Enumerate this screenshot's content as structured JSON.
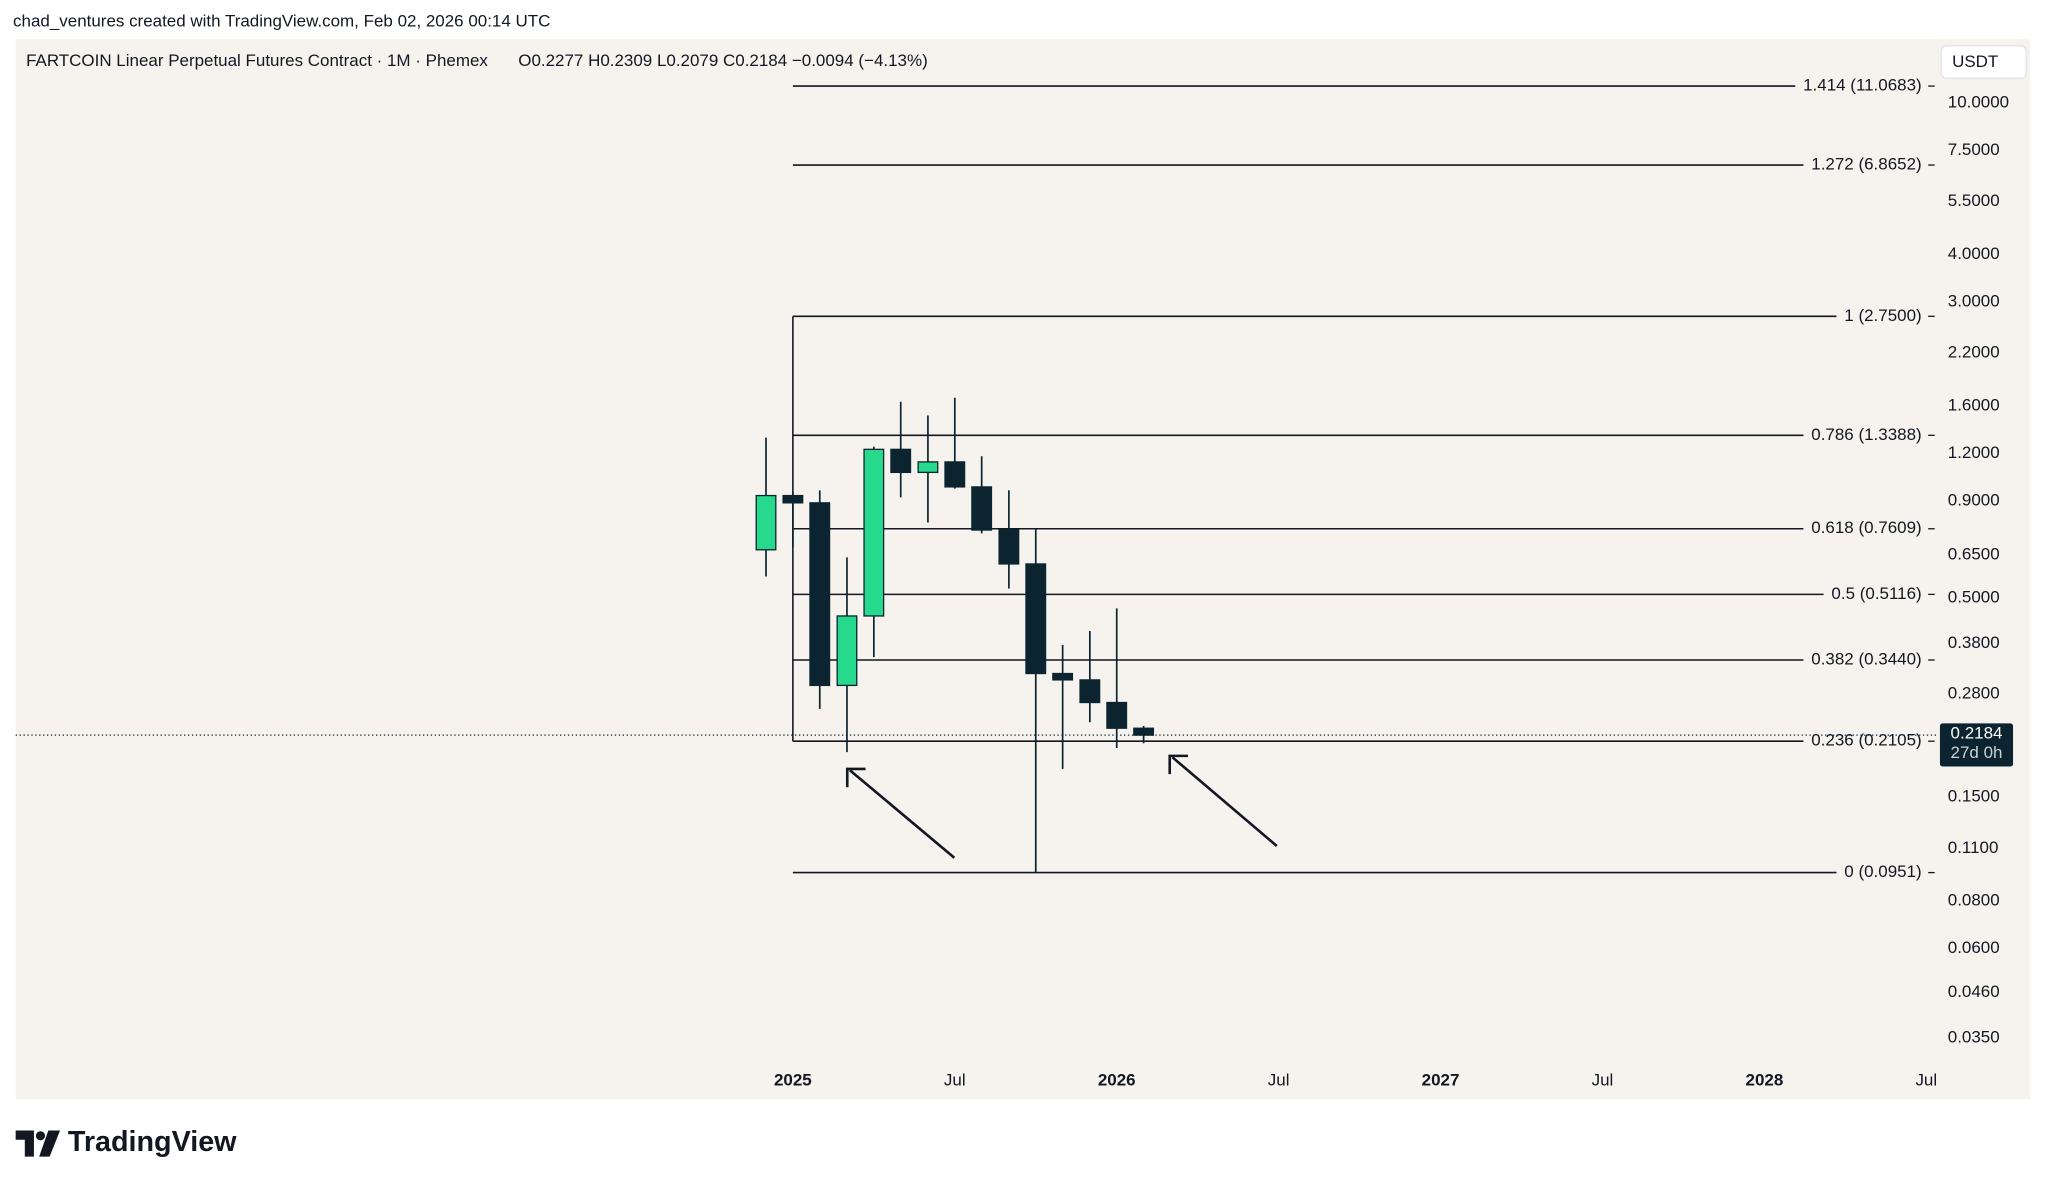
{
  "chart_data": {
    "type": "candlestick",
    "attribution": "chad_ventures created with TradingView.com, Feb 02, 2026 00:14 UTC",
    "title": "FARTCOIN Linear Perpetual Futures Contract · 1M · Phemex",
    "legend_values": "O0.2277  H0.2309  L0.2079  C0.2184  −0.0094 (−4.13%)",
    "currency": "USDT",
    "brand": "TradingView",
    "log_scale": true,
    "up_color": "#26d98c",
    "down_color": "#0b2430",
    "x": [
      2024.917,
      2025.0,
      2025.083,
      2025.167,
      2025.25,
      2025.333,
      2025.417,
      2025.5,
      2025.583,
      2025.667,
      2025.75,
      2025.833,
      2025.917,
      2026.0,
      2026.083
    ],
    "open": [
      0.67,
      0.93,
      0.89,
      0.295,
      0.449,
      1.23,
      1.07,
      1.14,
      0.98,
      0.755,
      0.615,
      0.317,
      0.305,
      0.266,
      0.2277
    ],
    "high": [
      1.32,
      0.95,
      0.96,
      0.64,
      1.25,
      1.64,
      1.51,
      1.68,
      1.18,
      0.96,
      0.76,
      0.377,
      0.41,
      0.47,
      0.2309
    ],
    "low": [
      0.57,
      0.68,
      0.256,
      0.197,
      0.35,
      0.92,
      0.79,
      0.97,
      0.74,
      0.53,
      0.0951,
      0.178,
      0.236,
      0.202,
      0.2079
    ],
    "close": [
      0.93,
      0.89,
      0.295,
      0.449,
      1.23,
      1.07,
      1.14,
      0.98,
      0.755,
      0.615,
      0.317,
      0.305,
      0.266,
      0.2277,
      0.2184
    ],
    "xlim": [
      2022.6,
      2028.53
    ],
    "xticks": [
      {
        "value": 2025,
        "label": "2025"
      },
      {
        "value": 2025.5,
        "label": "Jul"
      },
      {
        "value": 2026,
        "label": "2026"
      },
      {
        "value": 2026.5,
        "label": "Jul"
      },
      {
        "value": 2027,
        "label": "2027"
      },
      {
        "value": 2027.5,
        "label": "Jul"
      },
      {
        "value": 2028,
        "label": "2028"
      },
      {
        "value": 2028.5,
        "label": "Jul"
      }
    ],
    "ylim": [
      0.0306,
      14.7
    ],
    "yticks": [
      {
        "value": 10,
        "label": "10.0000"
      },
      {
        "value": 7.5,
        "label": "7.5000"
      },
      {
        "value": 5.5,
        "label": "5.5000"
      },
      {
        "value": 4,
        "label": "4.0000"
      },
      {
        "value": 3,
        "label": "3.0000"
      },
      {
        "value": 2.2,
        "label": "2.2000"
      },
      {
        "value": 1.6,
        "label": "1.6000"
      },
      {
        "value": 1.2,
        "label": "1.2000"
      },
      {
        "value": 0.9,
        "label": "0.9000"
      },
      {
        "value": 0.65,
        "label": "0.6500"
      },
      {
        "value": 0.5,
        "label": "0.5000"
      },
      {
        "value": 0.38,
        "label": "0.3800"
      },
      {
        "value": 0.28,
        "label": "0.2800"
      },
      {
        "value": 0.15,
        "label": "0.1500"
      },
      {
        "value": 0.11,
        "label": "0.1100"
      },
      {
        "value": 0.08,
        "label": "0.0800"
      },
      {
        "value": 0.06,
        "label": "0.0600"
      },
      {
        "value": 0.046,
        "label": "0.0460"
      },
      {
        "value": 0.035,
        "label": "0.0350"
      }
    ],
    "fib_levels": [
      {
        "value": 11.0683,
        "label": "1.414 (11.0683)"
      },
      {
        "value": 6.8652,
        "label": "1.272 (6.8652)"
      },
      {
        "value": 2.75,
        "label": "1 (2.7500)"
      },
      {
        "value": 1.3388,
        "label": "0.786 (1.3388)"
      },
      {
        "value": 0.7609,
        "label": "0.618 (0.7609)"
      },
      {
        "value": 0.5116,
        "label": "0.5 (0.5116)"
      },
      {
        "value": 0.344,
        "label": "0.382 (0.3440)"
      },
      {
        "value": 0.2105,
        "label": "0.236 (0.2105)"
      },
      {
        "value": 0.0951,
        "label": "0 (0.0951)"
      }
    ],
    "last_price": {
      "value": 0.2184,
      "label": "0.2184"
    },
    "countdown": "27d 0h"
  }
}
